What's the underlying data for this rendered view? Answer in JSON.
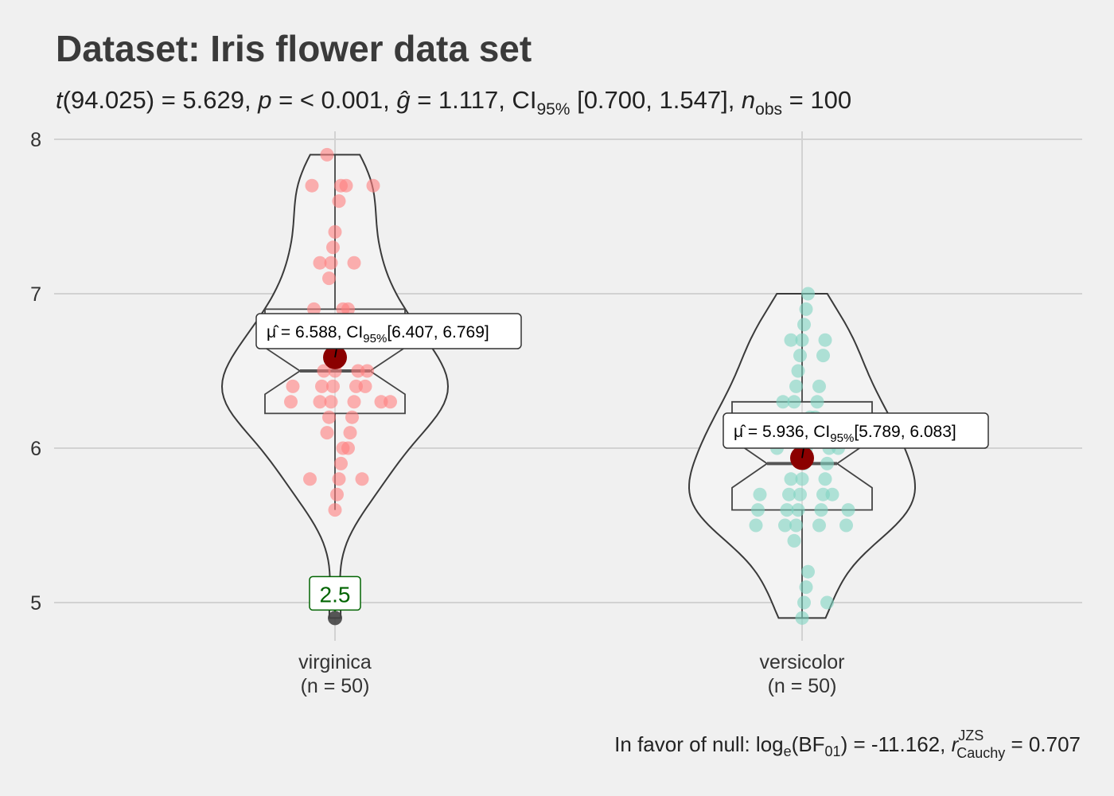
{
  "chart_data": {
    "type": "violin",
    "title": "Dataset: Iris flower data set",
    "subtitle": {
      "t_df": "(94.025) = 5.629",
      "p": " = < 0.001",
      "g": " = 1.117",
      "ci": " [0.700, 1.547]",
      "n": " = 100"
    },
    "caption": {
      "prefix": "In favor of null: log",
      "bf": "(BF",
      "bf_val": ") = -11.162, ",
      "r_val": " = 0.707"
    },
    "ylim": [
      4.8,
      8.2
    ],
    "yticks": [
      "5",
      "6",
      "7",
      "8"
    ],
    "grid": true,
    "groups": [
      {
        "name": "virginica",
        "n_label": "(n = 50)",
        "color": "#ff7f7f",
        "values": [
          6.3,
          5.8,
          7.1,
          6.3,
          6.5,
          7.6,
          4.9,
          7.3,
          6.7,
          7.2,
          6.5,
          6.4,
          6.8,
          5.7,
          5.8,
          6.4,
          6.5,
          7.7,
          7.7,
          6.0,
          6.9,
          5.6,
          7.7,
          6.3,
          6.7,
          7.2,
          6.2,
          6.1,
          6.4,
          7.2,
          7.4,
          7.9,
          6.4,
          6.3,
          6.1,
          7.7,
          6.3,
          6.4,
          6.0,
          6.9,
          6.7,
          6.9,
          5.8,
          6.8,
          6.7,
          6.7,
          6.3,
          6.5,
          6.2,
          5.9
        ],
        "mean": 6.588,
        "mean_label": "6.588, CI",
        "mean_ci": "[6.407, 6.769]",
        "median": 6.5,
        "q1": 6.225,
        "q3": 6.9,
        "whisker_low": 5.6,
        "whisker_high": 7.9,
        "outlier": 4.9,
        "outlier_label": "2.5"
      },
      {
        "name": "versicolor",
        "n_label": "(n = 50)",
        "color": "#7fd4c1",
        "values": [
          7.0,
          6.4,
          6.9,
          5.5,
          6.5,
          5.7,
          6.3,
          4.9,
          6.6,
          5.2,
          5.0,
          5.9,
          6.0,
          6.1,
          5.6,
          6.7,
          5.6,
          5.8,
          6.2,
          5.6,
          5.9,
          6.1,
          6.3,
          6.1,
          6.4,
          6.6,
          6.8,
          6.7,
          6.0,
          5.7,
          5.5,
          5.5,
          5.8,
          6.0,
          5.4,
          6.0,
          6.7,
          6.3,
          5.6,
          5.5,
          5.5,
          6.1,
          5.8,
          5.0,
          5.6,
          5.7,
          5.7,
          6.2,
          5.1,
          5.7
        ],
        "mean": 5.936,
        "mean_label": "5.936, CI",
        "mean_ci": "[5.789, 6.083]",
        "median": 5.9,
        "q1": 5.6,
        "q3": 6.3,
        "whisker_low": 4.9,
        "whisker_high": 7.0,
        "outlier": null,
        "outlier_label": ""
      }
    ]
  },
  "colors": {
    "background": "#f0f0f0",
    "grid": "#d2d2d2",
    "mean_point": "#8b0000",
    "outlier_label": "#006400"
  }
}
